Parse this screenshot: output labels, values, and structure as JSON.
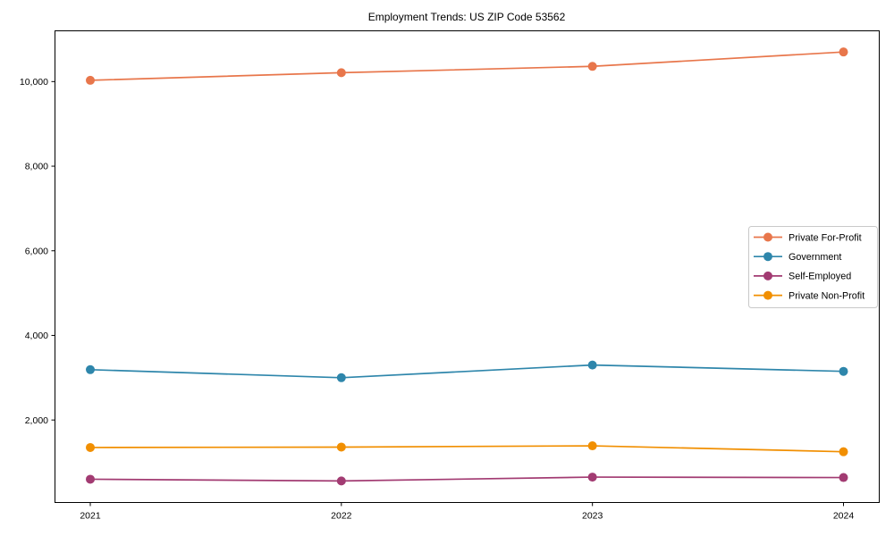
{
  "figure": {
    "background_color": "#ffffff",
    "text_color": "#000000",
    "frame_color": "#000000",
    "legend_border_color": "#c9c9c9"
  },
  "chart_data": {
    "type": "line",
    "title": "Employment Trends: US ZIP Code 53562",
    "xlabel": "",
    "ylabel": "",
    "x_categories": [
      "2021",
      "2022",
      "2023",
      "2024"
    ],
    "series": [
      {
        "name": "Private For-Profit",
        "color": "#E8764B",
        "values": [
          10030,
          10210,
          10360,
          10700
        ]
      },
      {
        "name": "Government",
        "color": "#2E86AB",
        "values": [
          3190,
          3000,
          3300,
          3150
        ]
      },
      {
        "name": "Self-Employed",
        "color": "#A23B72",
        "values": [
          600,
          560,
          650,
          640
        ]
      },
      {
        "name": "Private Non-Profit",
        "color": "#F18F01",
        "values": [
          1350,
          1360,
          1390,
          1250
        ]
      }
    ],
    "y_ticks": [
      2000,
      4000,
      6000,
      8000,
      10000
    ],
    "y_tick_labels": [
      "2,000",
      "4,000",
      "6,000",
      "8,000",
      "10,000"
    ],
    "ylim": [
      50,
      11200
    ],
    "grid": false,
    "marker": "circle",
    "legend": {
      "position": "center-right",
      "entries": [
        "Private For-Profit",
        "Government",
        "Self-Employed",
        "Private Non-Profit"
      ]
    }
  }
}
